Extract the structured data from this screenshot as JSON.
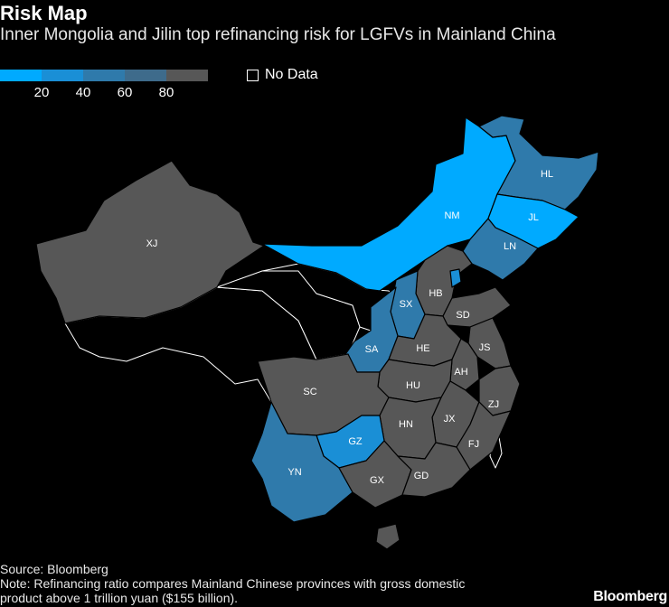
{
  "title": "Risk Map",
  "subtitle": "Inner Mongolia and Jilin top refinancing risk for LGFVs in Mainland China",
  "legend": {
    "colors": [
      "#00aaff",
      "#1a8fd6",
      "#2f7aab",
      "#3e6b8b",
      "#575757"
    ],
    "ticks": [
      "20",
      "40",
      "60",
      "80"
    ],
    "no_data_label": "No Data"
  },
  "provinces": {
    "XJ": "XJ",
    "NM": "NM",
    "HL": "HL",
    "JL": "JL",
    "LN": "LN",
    "HB": "HB",
    "SX": "SX",
    "SD": "SD",
    "SA": "SA",
    "HE": "HE",
    "JS": "JS",
    "AH": "AH",
    "HU": "HU",
    "SC": "SC",
    "ZJ": "ZJ",
    "JX": "JX",
    "HN": "HN",
    "GZ": "GZ",
    "FJ": "FJ",
    "YN": "YN",
    "GX": "GX",
    "GD": "GD"
  },
  "source": "Source: Bloomberg",
  "note_line1": "Note: Refinancing ratio compares Mainland Chinese provinces with gross domestic",
  "note_line2": "product above 1 trillion yuan ($155 billion).",
  "brand": "Bloomberg"
}
